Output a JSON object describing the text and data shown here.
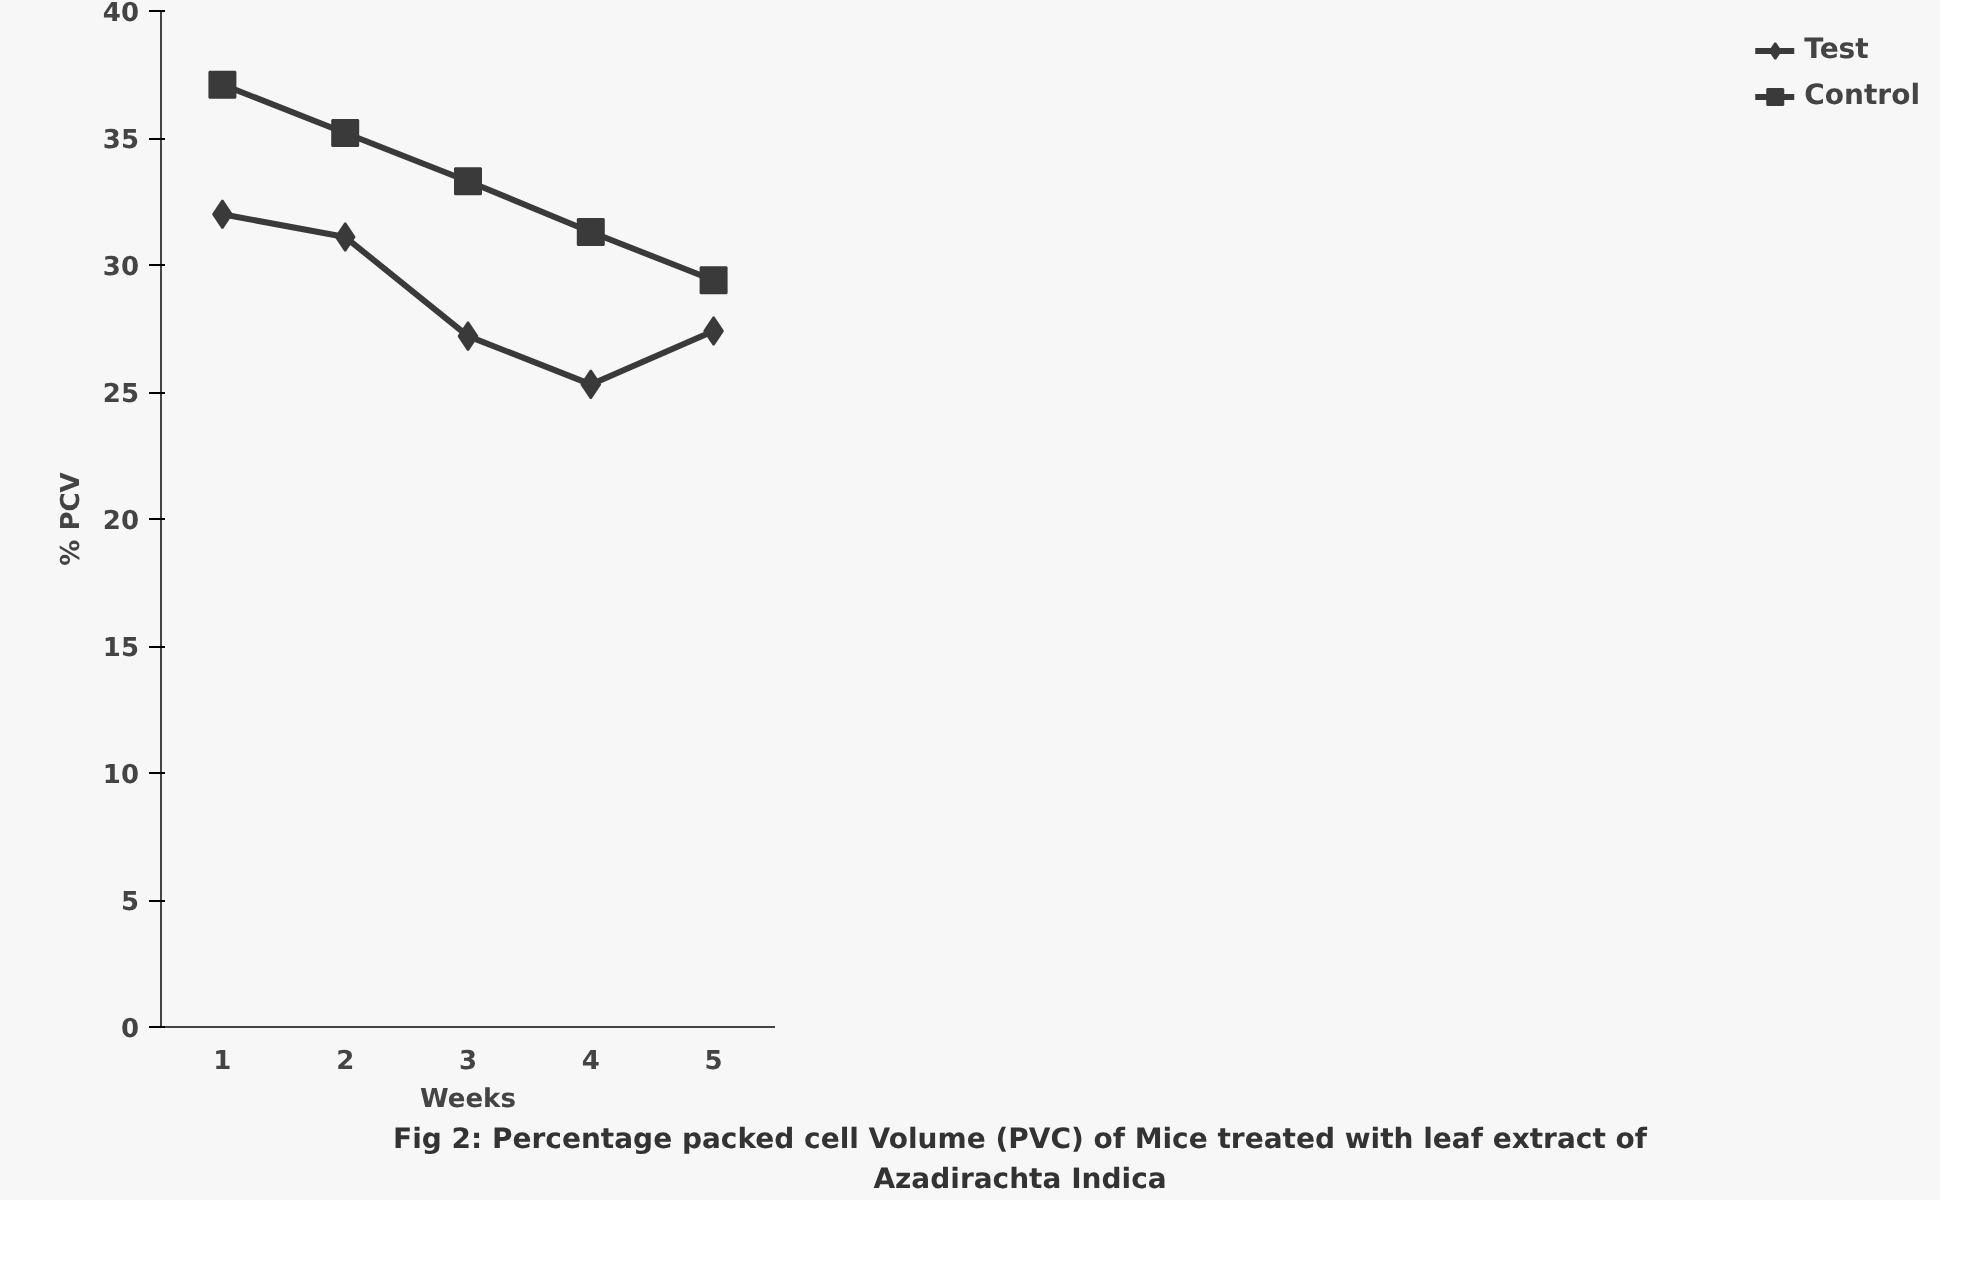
{
  "chart_data": {
    "type": "line",
    "xlabel": "Weeks",
    "ylabel": "% PCV",
    "categories": [
      "1",
      "2",
      "3",
      "4",
      "5"
    ],
    "ylim": [
      0,
      40
    ],
    "yticks": [
      0,
      5,
      10,
      15,
      20,
      25,
      30,
      35,
      40
    ],
    "grid": false,
    "legend": "right",
    "series": [
      {
        "name": "Test",
        "color": "#3a3a3a",
        "marker": "diamond",
        "values": [
          32.0,
          31.1,
          27.2,
          25.3,
          27.4
        ]
      },
      {
        "name": "Control",
        "color": "#3a3a3a",
        "marker": "square",
        "values": [
          37.1,
          35.2,
          33.3,
          31.3,
          29.4
        ]
      }
    ],
    "annotations": [
      "Fig 2: Percentage packed cell Volume (PVC) of Mice treated with  leaf extract of Azadirachta Indica"
    ]
  }
}
